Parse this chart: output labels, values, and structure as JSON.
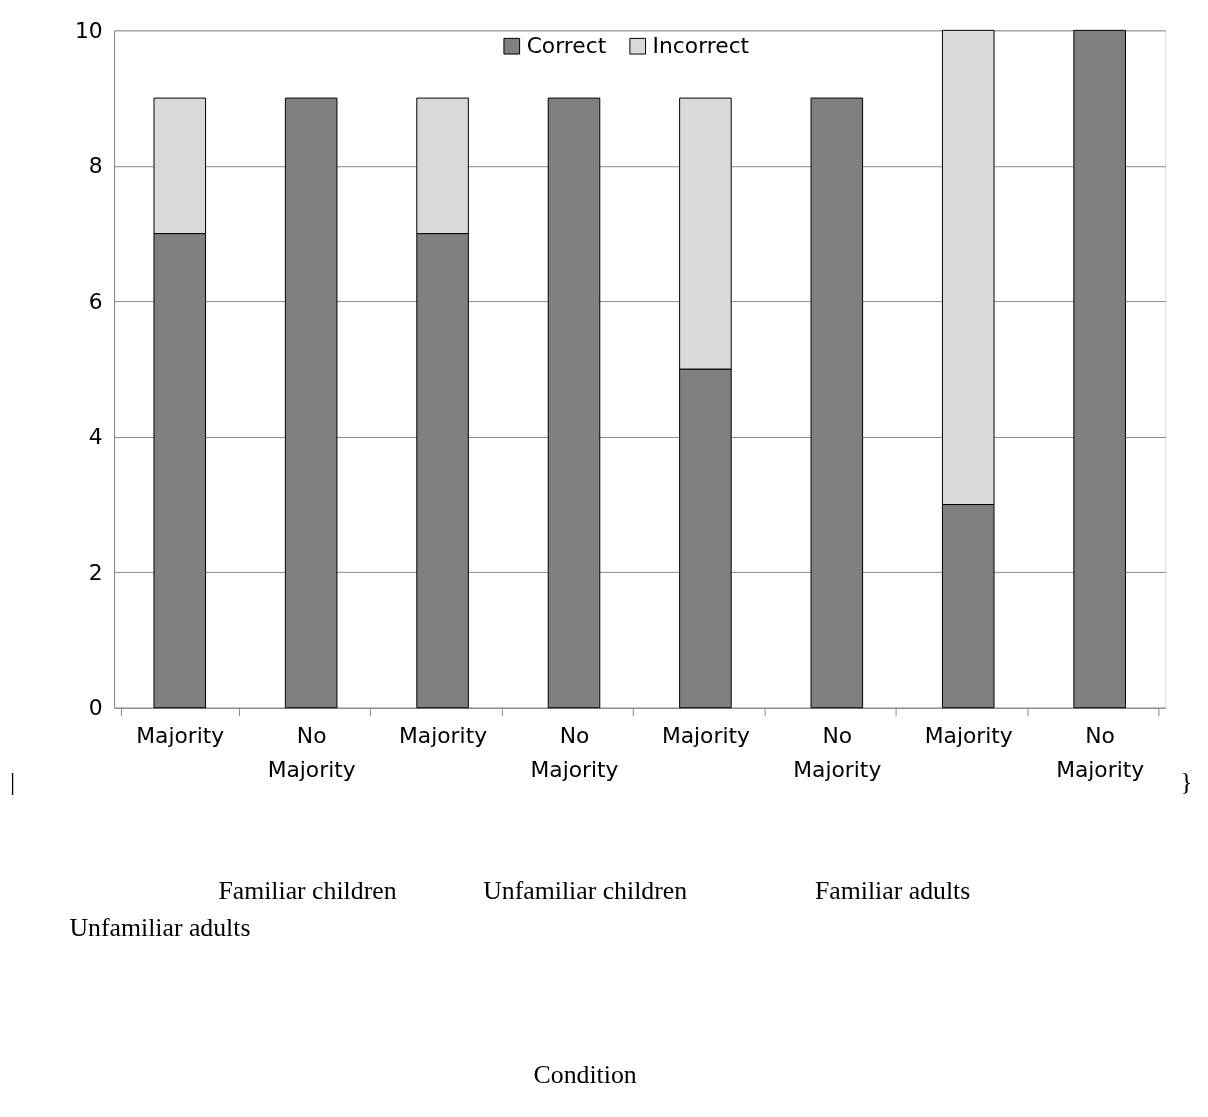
{
  "chart_data": {
    "type": "bar",
    "stacked": true,
    "categories": [
      "Majority",
      "No Majority",
      "Majority",
      "No Majority",
      "Majority",
      "No Majority",
      "Majority",
      "No Majority"
    ],
    "series": [
      {
        "name": "Correct",
        "color": "#808080",
        "values": [
          7,
          9,
          7,
          9,
          5,
          9,
          3,
          10
        ]
      },
      {
        "name": "Incorrect",
        "color": "#d9d9d9",
        "values": [
          2,
          0,
          2,
          0,
          4,
          0,
          7,
          0
        ]
      }
    ],
    "ylim": [
      0,
      10
    ],
    "yticks": [
      0,
      2,
      4,
      6,
      8,
      10
    ],
    "grid": "y",
    "legend": "top",
    "annotations": [
      "|",
      "}",
      "Familiar children",
      "Unfamiliar children",
      "Familiar adults",
      "Unfamiliar adults",
      "Condition"
    ]
  }
}
